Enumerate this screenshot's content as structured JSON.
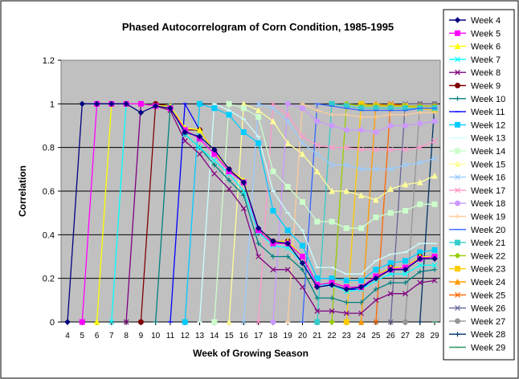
{
  "chart_data": {
    "type": "line",
    "title": "Phased Autocorrelogram of Corn Condition, 1985-1995",
    "xlabel": "Week of Growing Season",
    "ylabel": "Correlation",
    "ylim": [
      0,
      1.2
    ],
    "yticks": [
      "0",
      "0.2",
      "0.4",
      "0.6",
      "0.8",
      "1",
      "1.2"
    ],
    "grid": "horizontal",
    "legend": "right",
    "plot_background": "#c0c0c0",
    "categories": [
      "4",
      "5",
      "6",
      "7",
      "8",
      "9",
      "10",
      "11",
      "12",
      "13",
      "14",
      "15",
      "16",
      "17",
      "18",
      "19",
      "20",
      "21",
      "22",
      "23",
      "24",
      "25",
      "26",
      "27",
      "28",
      "29"
    ],
    "series": [
      {
        "name": "Week 4",
        "color": "#000080",
        "marker": "diamond",
        "values": [
          0,
          1,
          1,
          1,
          1,
          0.96,
          0.99,
          0.98,
          0.87,
          0.85,
          0.79,
          0.7,
          0.64,
          0.43,
          0.37,
          0.36,
          0.27,
          0.16,
          0.17,
          0.15,
          0.16,
          0.2,
          0.24,
          0.24,
          0.29,
          0.29
        ]
      },
      {
        "name": "Week 5",
        "color": "#ff00ff",
        "marker": "square",
        "values": [
          null,
          0,
          1,
          1,
          1,
          1,
          0.99,
          0.98,
          0.88,
          0.84,
          0.77,
          0.69,
          0.64,
          0.42,
          0.36,
          0.36,
          0.3,
          0.17,
          0.18,
          0.16,
          0.16,
          0.21,
          0.24,
          0.25,
          0.29,
          0.3
        ]
      },
      {
        "name": "Week 6",
        "color": "#ffff00",
        "marker": "triangle",
        "values": [
          null,
          null,
          0,
          1,
          1,
          1,
          0.99,
          0.99,
          0.89,
          0.88,
          0.78,
          0.7,
          0.65,
          0.42,
          0.37,
          0.37,
          0.3,
          0.17,
          0.18,
          0.16,
          0.16,
          0.21,
          0.25,
          0.25,
          0.3,
          0.3
        ]
      },
      {
        "name": "Week 7",
        "color": "#00ffff",
        "marker": "x",
        "values": [
          null,
          null,
          null,
          0,
          1,
          1,
          0.99,
          0.99,
          0.86,
          0.8,
          0.74,
          0.68,
          0.6,
          0.41,
          0.35,
          0.34,
          0.27,
          0.17,
          0.17,
          0.14,
          0.15,
          0.19,
          0.22,
          0.22,
          0.26,
          0.26
        ]
      },
      {
        "name": "Week 8",
        "color": "#800080",
        "marker": "x",
        "values": [
          null,
          null,
          null,
          null,
          0,
          1,
          0.99,
          0.97,
          0.83,
          0.77,
          0.68,
          0.61,
          0.52,
          0.3,
          0.24,
          0.24,
          0.16,
          0.05,
          0.05,
          0.04,
          0.04,
          0.1,
          0.13,
          0.13,
          0.18,
          0.19
        ]
      },
      {
        "name": "Week 9",
        "color": "#800000",
        "marker": "circle",
        "values": [
          null,
          null,
          null,
          null,
          null,
          0,
          1,
          0.99,
          0.88,
          0.88,
          0.78,
          0.7,
          0.64,
          0.42,
          0.37,
          0.37,
          0.3,
          0.17,
          0.18,
          0.16,
          0.16,
          0.21,
          0.25,
          0.25,
          0.3,
          0.3
        ]
      },
      {
        "name": "Week 10",
        "color": "#008080",
        "marker": "plus",
        "values": [
          null,
          null,
          null,
          null,
          null,
          null,
          0,
          0.99,
          0.86,
          0.8,
          0.72,
          0.65,
          0.58,
          0.36,
          0.3,
          0.3,
          0.24,
          0.11,
          0.11,
          0.09,
          0.09,
          0.15,
          0.18,
          0.18,
          0.23,
          0.24
        ]
      },
      {
        "name": "Week 11",
        "color": "#0000ff",
        "marker": "line",
        "values": [
          null,
          null,
          null,
          null,
          null,
          null,
          null,
          0,
          1,
          0.88,
          0.78,
          0.7,
          0.64,
          0.43,
          0.36,
          0.36,
          0.3,
          0.17,
          0.17,
          0.15,
          0.15,
          0.21,
          0.25,
          0.25,
          0.3,
          0.3
        ]
      },
      {
        "name": "Week 12",
        "color": "#00ccff",
        "marker": "square",
        "values": [
          null,
          null,
          null,
          null,
          null,
          null,
          null,
          null,
          0,
          1,
          0.98,
          0.95,
          0.87,
          0.82,
          0.51,
          0.42,
          0.35,
          0.2,
          0.2,
          0.19,
          0.19,
          0.24,
          0.27,
          0.28,
          0.32,
          0.33
        ]
      },
      {
        "name": "Week 13",
        "color": "#ccffff",
        "marker": "line",
        "values": [
          null,
          null,
          null,
          null,
          null,
          null,
          null,
          null,
          null,
          0,
          1,
          0.97,
          0.93,
          0.85,
          0.6,
          0.5,
          0.42,
          0.25,
          0.25,
          0.22,
          0.22,
          0.28,
          0.31,
          0.32,
          0.36,
          0.36
        ]
      },
      {
        "name": "Week 14",
        "color": "#ccffcc",
        "marker": "square",
        "values": [
          null,
          null,
          null,
          null,
          null,
          null,
          null,
          null,
          null,
          null,
          0,
          1,
          0.98,
          0.94,
          0.69,
          0.62,
          0.55,
          0.46,
          0.46,
          0.43,
          0.43,
          0.48,
          0.5,
          0.51,
          0.54,
          0.54
        ]
      },
      {
        "name": "Week 15",
        "color": "#ffff99",
        "marker": "triangle",
        "values": [
          null,
          null,
          null,
          null,
          null,
          null,
          null,
          null,
          null,
          null,
          null,
          0,
          1,
          0.97,
          0.92,
          0.82,
          0.77,
          0.69,
          0.6,
          0.6,
          0.58,
          0.56,
          0.61,
          0.63,
          0.64,
          0.67
        ]
      },
      {
        "name": "Week 16",
        "color": "#99ccff",
        "marker": "x",
        "values": [
          null,
          null,
          null,
          null,
          null,
          null,
          null,
          null,
          null,
          null,
          null,
          null,
          0,
          1,
          0.98,
          0.92,
          0.82,
          0.77,
          0.72,
          0.72,
          0.7,
          0.7,
          0.7,
          0.72,
          0.73,
          0.75
        ]
      },
      {
        "name": "Week 17",
        "color": "#ff99cc",
        "marker": "x",
        "values": [
          null,
          null,
          null,
          null,
          null,
          null,
          null,
          null,
          null,
          null,
          null,
          null,
          null,
          0,
          1,
          0.95,
          0.85,
          0.81,
          0.8,
          0.8,
          0.79,
          0.79,
          0.79,
          0.79,
          0.8,
          0.83
        ]
      },
      {
        "name": "Week 18",
        "color": "#cc99ff",
        "marker": "circle",
        "values": [
          null,
          null,
          null,
          null,
          null,
          null,
          null,
          null,
          null,
          null,
          null,
          null,
          null,
          null,
          0,
          1,
          0.98,
          0.92,
          0.9,
          0.88,
          0.88,
          0.87,
          0.9,
          0.9,
          0.91,
          0.92
        ]
      },
      {
        "name": "Week 19",
        "color": "#ffcc99",
        "marker": "plus",
        "values": [
          null,
          null,
          null,
          null,
          null,
          null,
          null,
          null,
          null,
          null,
          null,
          null,
          null,
          null,
          null,
          0,
          1,
          0.97,
          0.95,
          0.95,
          0.94,
          0.94,
          0.95,
          0.95,
          0.96,
          0.96
        ]
      },
      {
        "name": "Week 20",
        "color": "#3366ff",
        "marker": "line",
        "values": [
          null,
          null,
          null,
          null,
          null,
          null,
          null,
          null,
          null,
          null,
          null,
          null,
          null,
          null,
          null,
          null,
          0,
          1,
          0.99,
          0.98,
          0.97,
          0.97,
          0.97,
          0.97,
          0.98,
          0.98
        ]
      },
      {
        "name": "Week 21",
        "color": "#33cccc",
        "marker": "square",
        "values": [
          null,
          null,
          null,
          null,
          null,
          null,
          null,
          null,
          null,
          null,
          null,
          null,
          null,
          null,
          null,
          null,
          null,
          0,
          1,
          0.99,
          0.98,
          0.98,
          0.98,
          0.98,
          0.98,
          0.98
        ]
      },
      {
        "name": "Week 22",
        "color": "#99cc00",
        "marker": "diamond",
        "values": [
          null,
          null,
          null,
          null,
          null,
          null,
          null,
          null,
          null,
          null,
          null,
          null,
          null,
          null,
          null,
          null,
          null,
          null,
          0,
          1,
          0.99,
          0.99,
          0.99,
          0.99,
          0.99,
          0.99
        ]
      },
      {
        "name": "Week 23",
        "color": "#ffcc00",
        "marker": "square",
        "values": [
          null,
          null,
          null,
          null,
          null,
          null,
          null,
          null,
          null,
          null,
          null,
          null,
          null,
          null,
          null,
          null,
          null,
          null,
          null,
          0,
          1,
          0.99,
          0.99,
          0.99,
          0.98,
          0.97
        ]
      },
      {
        "name": "Week 24",
        "color": "#ff9900",
        "marker": "triangle",
        "values": [
          null,
          null,
          null,
          null,
          null,
          null,
          null,
          null,
          null,
          null,
          null,
          null,
          null,
          null,
          null,
          null,
          null,
          null,
          null,
          null,
          0,
          1,
          0.99,
          0.99,
          0.98,
          0.98
        ]
      },
      {
        "name": "Week 25",
        "color": "#ff6600",
        "marker": "x",
        "values": [
          null,
          null,
          null,
          null,
          null,
          null,
          null,
          null,
          null,
          null,
          null,
          null,
          null,
          null,
          null,
          null,
          null,
          null,
          null,
          null,
          null,
          0,
          1,
          0.99,
          0.99,
          0.99
        ]
      },
      {
        "name": "Week 26",
        "color": "#666699",
        "marker": "x",
        "values": [
          null,
          null,
          null,
          null,
          null,
          null,
          null,
          null,
          null,
          null,
          null,
          null,
          null,
          null,
          null,
          null,
          null,
          null,
          null,
          null,
          null,
          null,
          0,
          1,
          1,
          1
        ]
      },
      {
        "name": "Week 27",
        "color": "#969696",
        "marker": "circle",
        "values": [
          null,
          null,
          null,
          null,
          null,
          null,
          null,
          null,
          null,
          null,
          null,
          null,
          null,
          null,
          null,
          null,
          null,
          null,
          null,
          null,
          null,
          null,
          null,
          0,
          1,
          1
        ]
      },
      {
        "name": "Week 28",
        "color": "#003366",
        "marker": "plus",
        "values": [
          null,
          null,
          null,
          null,
          null,
          null,
          null,
          null,
          null,
          null,
          null,
          null,
          null,
          null,
          null,
          null,
          null,
          null,
          null,
          null,
          null,
          null,
          null,
          null,
          0,
          1
        ]
      },
      {
        "name": "Week 29",
        "color": "#339966",
        "marker": "line",
        "values": [
          null,
          null,
          null,
          null,
          null,
          null,
          null,
          null,
          null,
          null,
          null,
          null,
          null,
          null,
          null,
          null,
          null,
          null,
          null,
          null,
          null,
          null,
          null,
          null,
          null,
          0
        ]
      }
    ]
  }
}
